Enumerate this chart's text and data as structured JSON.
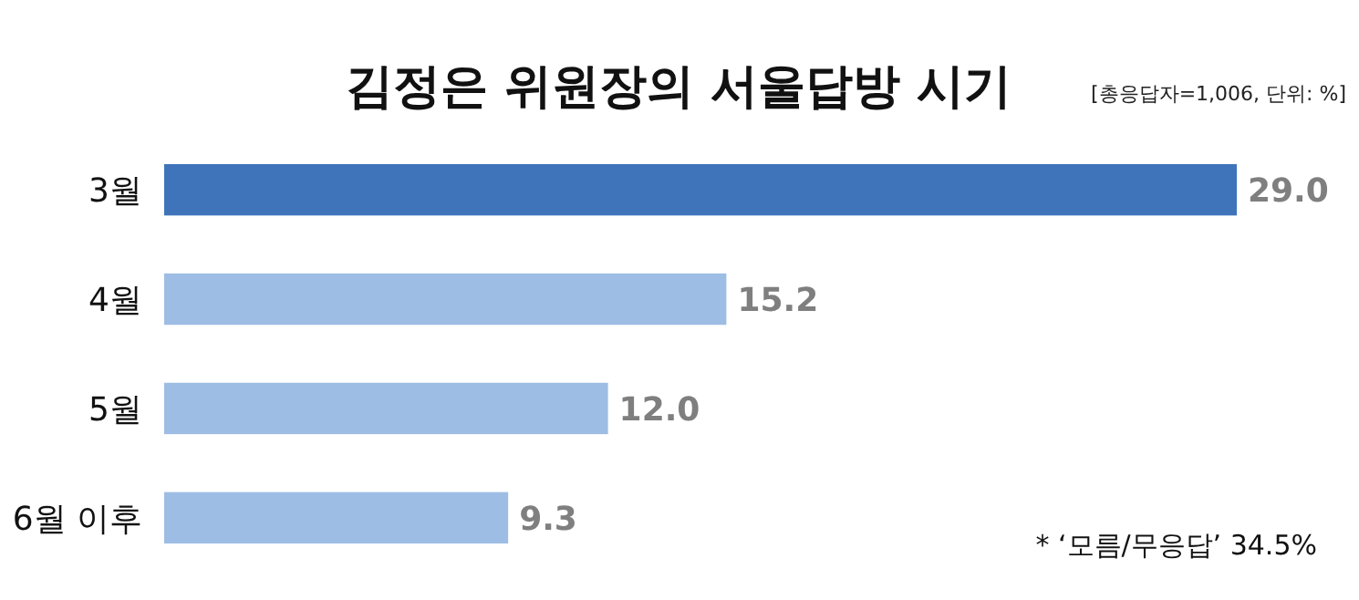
{
  "chart_data": {
    "type": "bar",
    "orientation": "horizontal",
    "title": "김정은 위원장의 서울답방 시기",
    "subtitle": "[총응답자=1,006, 단위: %]",
    "categories": [
      "3월",
      "4월",
      "5월",
      "6월 이후"
    ],
    "values": [
      29.0,
      15.2,
      12.0,
      9.3
    ],
    "colors": [
      "#3f74bb",
      "#9dbde4",
      "#9dbde4",
      "#9dbde4"
    ],
    "value_labels": [
      "29.0",
      "15.2",
      "12.0",
      "9.3"
    ],
    "annotations": [
      "* ‘모름/무응답’ 34.5%"
    ]
  }
}
